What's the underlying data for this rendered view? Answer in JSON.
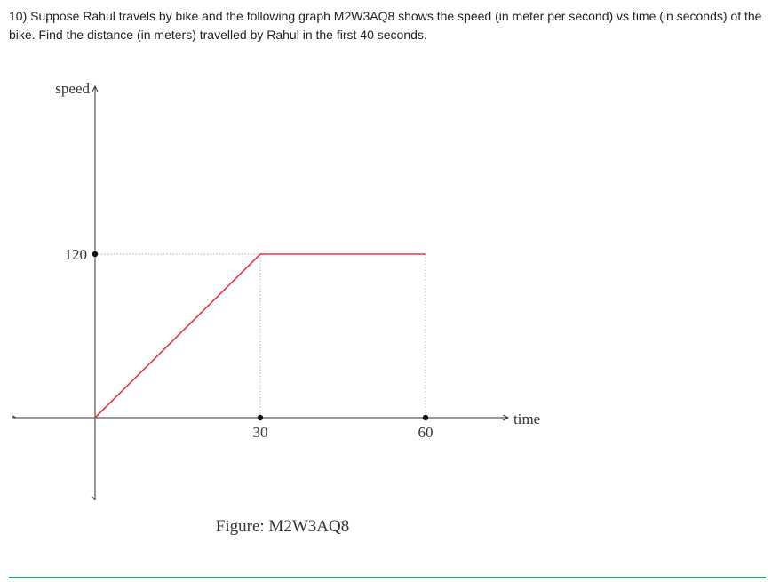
{
  "question": {
    "text": "10) Suppose Rahul travels by bike and the following graph M2W3AQ8 shows the speed (in meter per second) vs time (in seconds) of the bike. Find the distance (in meters) travelled by Rahul in the first 40 seconds."
  },
  "chart_data": {
    "type": "line",
    "xlabel": "time",
    "ylabel": "speed",
    "x_ticks": [
      30,
      60
    ],
    "y_ticks": [
      120
    ],
    "series": [
      {
        "x": [
          0,
          30,
          60
        ],
        "y": [
          0,
          120,
          120
        ],
        "color": "#e8333b"
      }
    ],
    "guides": "dotted",
    "caption": "Figure: M2W3AQ8"
  },
  "colors": {
    "line": "#e8333b",
    "axis": "#333333",
    "rule": "#2e9c5f"
  }
}
